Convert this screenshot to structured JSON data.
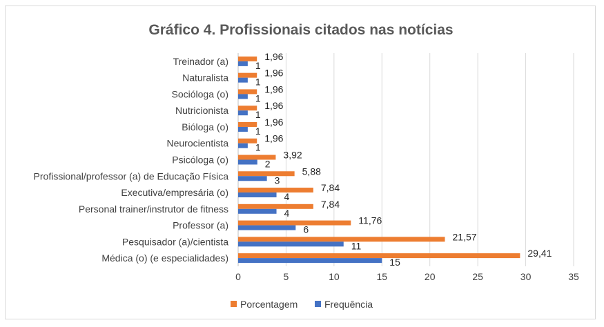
{
  "chart_data": {
    "type": "bar",
    "orientation": "horizontal",
    "title": "Gráfico 4. Profissionais citados nas notícias",
    "categories": [
      "Médica (o) (e especialidades)",
      "Pesquisador (a)/cientista",
      "Professor (a)",
      "Personal trainer/instrutor de fitness",
      "Executiva/empresária (o)",
      "Profissional/professor (a) de Educação Física",
      "Psicóloga (o)",
      "Neurocientista",
      "Bióloga (o)",
      "Nutricionista",
      "Socióloga (o)",
      "Naturalista",
      "Treinador (a)"
    ],
    "series": [
      {
        "name": "Porcentagem",
        "color": "#ed7d31",
        "values": [
          29.41,
          21.57,
          11.76,
          7.84,
          7.84,
          5.88,
          3.92,
          1.96,
          1.96,
          1.96,
          1.96,
          1.96,
          1.96
        ],
        "labels": [
          "29,41",
          "21,57",
          "11,76",
          "7,84",
          "7,84",
          "5,88",
          "3,92",
          "1,96",
          "1,96",
          "1,96",
          "1,96",
          "1,96",
          "1,96"
        ]
      },
      {
        "name": "Frequência",
        "color": "#4472c4",
        "values": [
          15,
          11,
          6,
          4,
          4,
          3,
          2,
          1,
          1,
          1,
          1,
          1,
          1
        ],
        "labels": [
          "15",
          "11",
          "6",
          "4",
          "4",
          "3",
          "2",
          "1",
          "1",
          "1",
          "1",
          "1",
          "1"
        ]
      }
    ],
    "xlim": [
      0,
      35
    ],
    "xticks": [
      0,
      5,
      10,
      15,
      20,
      25,
      30,
      35
    ],
    "xlabel": "",
    "ylabel": "",
    "grid": true,
    "legend": "bottom"
  }
}
